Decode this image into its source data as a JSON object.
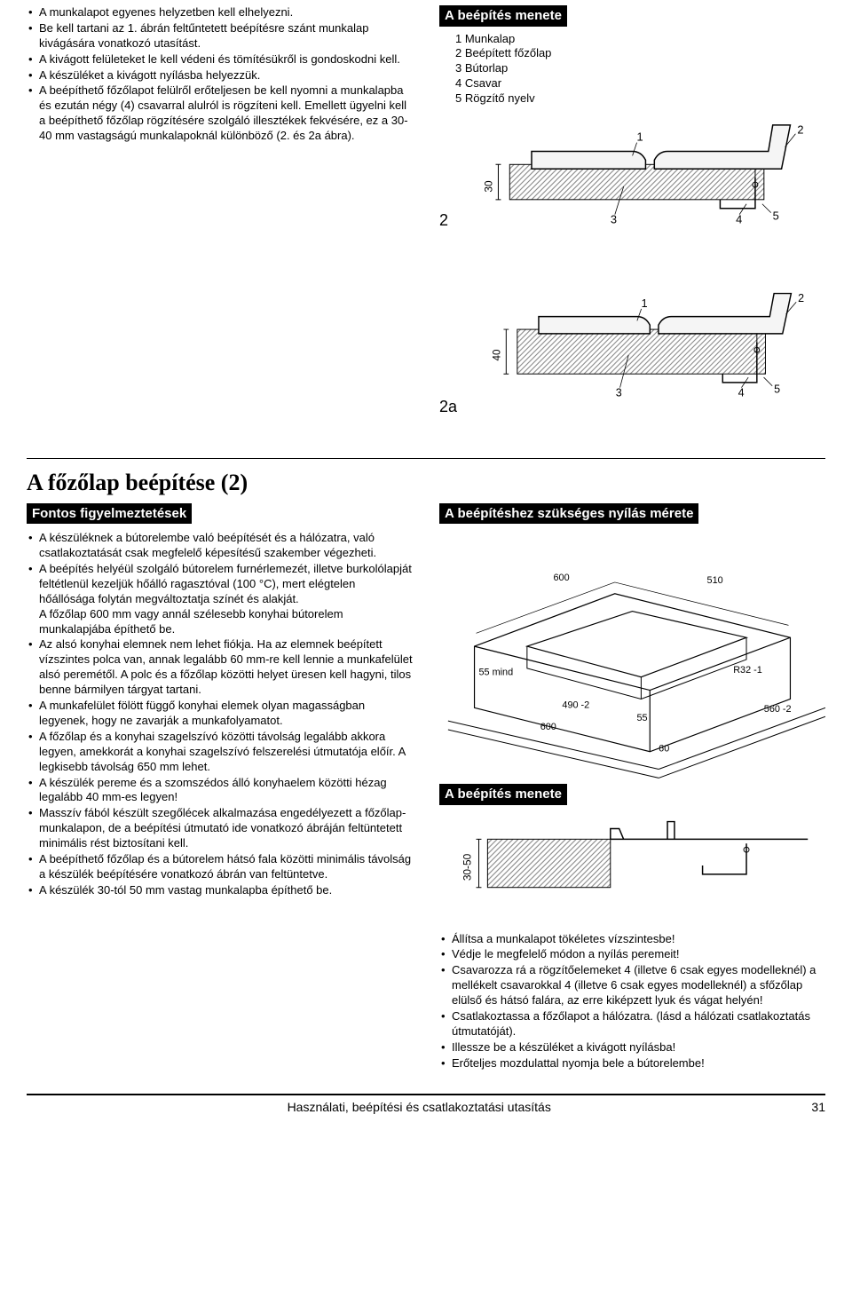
{
  "top_left_bullets": [
    "A munkalapot egyenes helyzetben kell elhelyezni.",
    "Be kell tartani  az 1. ábrán feltűntetett beépítésre szánt munkalap kivágására vonatkozó utasítást.",
    "A kivágott felületeket le kell védeni és tömítésükről is gondoskodni kell.",
    "A készüléket a kivágott nyílásba helyezzük.",
    "A beépíthető főzőlapot felülről erőteljesen be kell nyomni a munkalapba és ezután négy (4) csavarral alulról is rögzíteni kell. Emellett ügyelni kell a beépíthető főzőlap rögzítésére szolgáló illesztékek fekvésére, ez a 30-40 mm vastagságú munkalapoknál különböző (2. és 2a ábra)."
  ],
  "install_heading": "A beépítés menete",
  "legend": [
    {
      "n": "1",
      "t": "Munkalap"
    },
    {
      "n": "2",
      "t": "Beépített főzőlap"
    },
    {
      "n": "3",
      "t": "Bútorlap"
    },
    {
      "n": "4",
      "t": "Csavar"
    },
    {
      "n": "5",
      "t": "Rögzítő nyelv"
    }
  ],
  "fig2_label": "2",
  "fig2a_label": "2a",
  "diagram2": {
    "dim_v": "30",
    "labels": [
      "1",
      "2",
      "3",
      "4",
      "5"
    ],
    "hatch_color": "#808080",
    "line_color": "#000000"
  },
  "diagram2a": {
    "dim_v": "40",
    "labels": [
      "1",
      "2",
      "3",
      "4",
      "5"
    ],
    "hatch_color": "#808080",
    "line_color": "#000000"
  },
  "main_title": "A főzőlap beépítése (2)",
  "left_subheading": "Fontos figyelmeztetések",
  "right_subheading_top": "A beépítéshez szükséges nyílás mérete",
  "right_subheading_mid": "A beépítés menete",
  "left_bullets": [
    "A készüléknek a bútorelembe való beépítését és a hálózatra, való csatlakoztatását csak megfelelő képesítésű szakember végezheti.",
    "A beépítés helyéül szolgáló bútorelem furnérlemezét, illetve burkolólapját feltétlenül kezeljük hőálló ragasztóval (100 °C), mert elégtelen hőállósága folytán megváltoztatja színét és alakját.\nA főzőlap 600 mm vagy annál szélesebb konyhai bútorelem munkalapjába építhető be.",
    "Az alsó konyhai elemnek nem lehet fiókja. Ha az elemnek beépített vízszintes polca van, annak legalább 60 mm-re kell lennie a munkafelület alsó peremétől. A polc és a főzőlap közötti helyet üresen kell hagyni, tilos benne bármilyen tárgyat tartani.",
    "A munkafelület fölött függő konyhai elemek olyan magasságban legyenek, hogy ne zavarják a munkafolyamatot.",
    "A főzőlap és a konyhai szagelszívó közötti távolság legalább akkora legyen, amekkorát a konyhai szagelszívó felszerelési útmutatója előír. A legkisebb távolság 650 mm lehet.",
    "A készülék pereme és a szomszédos álló konyhaelem közötti hézag legalább 40 mm-es legyen!",
    "Masszív fából készült szegőlécek alkalmazása engedélyezett a főzőlap-munkalapon, de a beépítési útmutató ide vonatkozó ábráján feltüntetett minimális rést biztosítani kell.",
    "A beépíthető főzőlap és a bútorelem hátsó fala közötti minimális távolság a készülék beépítésére vonatkozó ábrán van feltüntetve.",
    "A készülék 30-tól 50 mm vastag munkalapba építhető be."
  ],
  "opening_diagram": {
    "dims": {
      "top_left": "600",
      "top_right": "510",
      "front_left": "55 mind",
      "bottom_left": "490 -2",
      "bottom_mid1": "600",
      "bottom_mid2": "55",
      "right_label": "R32 -1",
      "right_far": "560 -2",
      "depth": "60"
    },
    "line_color": "#000000"
  },
  "install_diagram": {
    "dim": "30-50",
    "line_color": "#000000",
    "hatch_color": "#808080"
  },
  "right_bullets": [
    "Állítsa a munkalapot tökéletes vízszintesbe!",
    "Védje le megfelelő módon a nyílás peremeit!",
    "Csavarozza rá a rögzítőelemeket 4 (illetve 6 csak egyes modelleknél) a mellékelt csavarokkal 4 (illetve 6 csak egyes modelleknél) a sfőzőlap elülső és hátsó falára, az erre kiképzett lyuk és vágat helyén!",
    "Csatlakoztassa a főzőlapot a hálózatra. (lásd a hálózati csatlakoztatás útmutatóját).",
    "Illessze be a készüléket a kivágott nyílásba!",
    "Erőteljes mozdulattal nyomja bele a bútorelembe!"
  ],
  "footer_text": "Használati, beépítési és csatlakoztatási utasítás",
  "page_number": "31"
}
